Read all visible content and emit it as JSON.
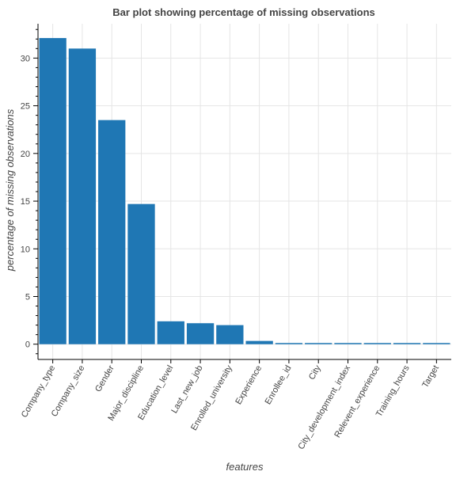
{
  "chart_data": {
    "type": "bar",
    "title": "Bar plot showing percentage of missing observations",
    "xlabel": "features",
    "ylabel": "percentage of missing observations",
    "categories": [
      "Company_type",
      "Company_size",
      "Gender",
      "Major_discipline",
      "Education_level",
      "Last_new_job",
      "Enrolled_university",
      "Experience",
      "Enrollee_id",
      "City",
      "City_development_index",
      "Relevent_experience",
      "Training_hours",
      "Target"
    ],
    "values": [
      32.1,
      31.0,
      23.5,
      14.7,
      2.4,
      2.2,
      2.0,
      0.34,
      0,
      0,
      0,
      0,
      0,
      0
    ],
    "ylim": [
      -1.6,
      33.6
    ],
    "yticks": [
      0,
      5,
      10,
      15,
      20,
      25,
      30
    ],
    "grid": true,
    "bar_color": "#1f77b4"
  }
}
